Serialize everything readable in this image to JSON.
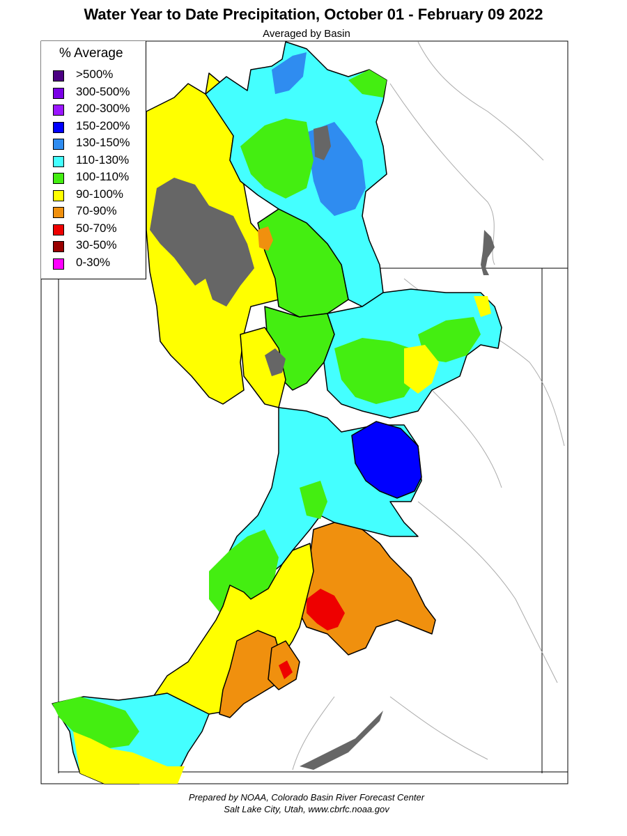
{
  "title": "Water Year to Date Precipitation, October 01  - February 09 2022",
  "subtitle": "Averaged by Basin",
  "legend": {
    "title": "% Average",
    "items": [
      {
        "label": ">500%",
        "color": "#4b0082"
      },
      {
        "label": "300-500%",
        "color": "#7a00e6"
      },
      {
        "label": "200-300%",
        "color": "#9a16ff"
      },
      {
        "label": "150-200%",
        "color": "#0000ff"
      },
      {
        "label": "130-150%",
        "color": "#2f8cf0"
      },
      {
        "label": "110-130%",
        "color": "#44ffff"
      },
      {
        "label": "100-110%",
        "color": "#44ee11"
      },
      {
        "label": "90-100%",
        "color": "#ffff00"
      },
      {
        "label": "70-90%",
        "color": "#f0900e"
      },
      {
        "label": "50-70%",
        "color": "#ee0000"
      },
      {
        "label": "30-50%",
        "color": "#990000"
      },
      {
        "label": "0-30%",
        "color": "#ff00ff"
      }
    ]
  },
  "colors": {
    "no_data": "#666666",
    "water_body": "#666666",
    "state_line": "#000000",
    "river": "#aaaaaa"
  },
  "footer": {
    "line1": "Prepared by NOAA, Colorado Basin River Forecast Center",
    "line2": "Salt Lake City, Utah, www.cbrfc.noaa.gov"
  }
}
